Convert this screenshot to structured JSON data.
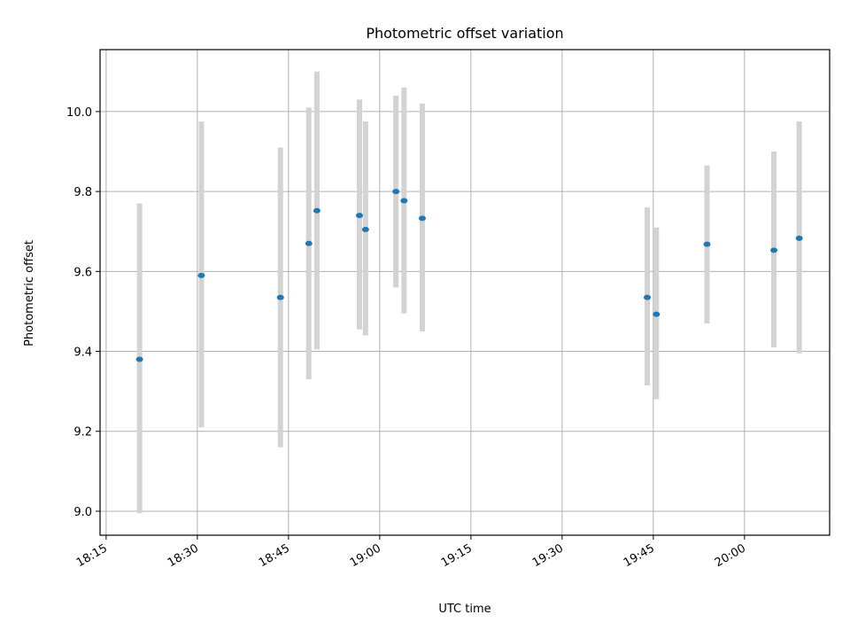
{
  "chart_data": {
    "type": "scatter",
    "title": "Photometric offset variation",
    "xlabel": "UTC time",
    "ylabel": "Photometric offset",
    "grid": true,
    "x_ticks": [
      "18:15",
      "18:30",
      "18:45",
      "19:00",
      "19:15",
      "19:30",
      "19:45",
      "20:00"
    ],
    "y_ticks": [
      "9.0",
      "9.2",
      "9.4",
      "9.6",
      "9.8",
      "10.0"
    ],
    "xlim": [
      "18:14",
      "20:14"
    ],
    "ylim": [
      8.94,
      10.155
    ],
    "error_bar_color": "#d3d3d3",
    "point_color": "#1f77b4",
    "points": [
      {
        "x": "18:20:30",
        "y": 9.38,
        "yerr_low": 8.995,
        "yerr_high": 9.77
      },
      {
        "x": "18:30:40",
        "y": 9.59,
        "yerr_low": 9.21,
        "yerr_high": 9.975
      },
      {
        "x": "18:43:40",
        "y": 9.535,
        "yerr_low": 9.16,
        "yerr_high": 9.91
      },
      {
        "x": "18:48:20",
        "y": 9.67,
        "yerr_low": 9.33,
        "yerr_high": 10.01
      },
      {
        "x": "18:49:40",
        "y": 9.752,
        "yerr_low": 9.405,
        "yerr_high": 10.1
      },
      {
        "x": "18:56:40",
        "y": 9.74,
        "yerr_low": 9.455,
        "yerr_high": 10.03
      },
      {
        "x": "18:57:40",
        "y": 9.705,
        "yerr_low": 9.44,
        "yerr_high": 9.975
      },
      {
        "x": "19:02:40",
        "y": 9.8,
        "yerr_low": 9.56,
        "yerr_high": 10.04
      },
      {
        "x": "19:04:00",
        "y": 9.777,
        "yerr_low": 9.495,
        "yerr_high": 10.06
      },
      {
        "x": "19:07:00",
        "y": 9.733,
        "yerr_low": 9.45,
        "yerr_high": 10.02
      },
      {
        "x": "19:44:00",
        "y": 9.535,
        "yerr_low": 9.315,
        "yerr_high": 9.76
      },
      {
        "x": "19:45:30",
        "y": 9.493,
        "yerr_low": 9.28,
        "yerr_high": 9.71
      },
      {
        "x": "19:53:50",
        "y": 9.668,
        "yerr_low": 9.47,
        "yerr_high": 9.865
      },
      {
        "x": "20:04:50",
        "y": 9.653,
        "yerr_low": 9.41,
        "yerr_high": 9.9
      },
      {
        "x": "20:09:00",
        "y": 9.683,
        "yerr_low": 9.395,
        "yerr_high": 9.975
      }
    ]
  }
}
